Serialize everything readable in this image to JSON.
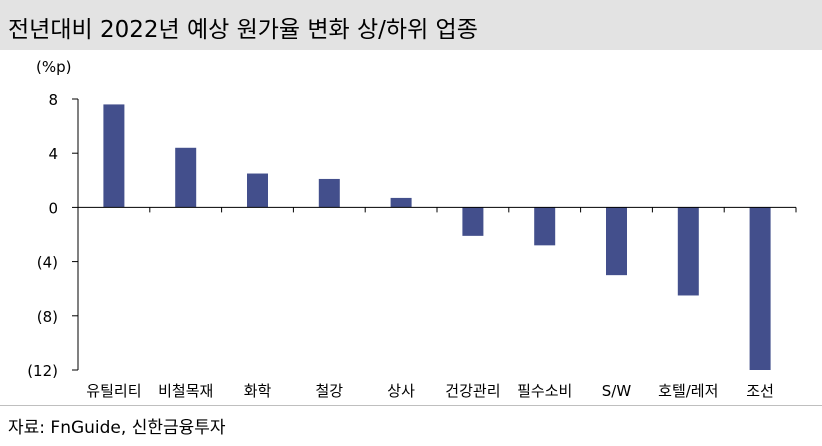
{
  "title": "전년대비 2022년 예상 원가율 변화 상/하위 업종",
  "source": "자료: FnGuide, 신한금융투자",
  "chart_data": {
    "type": "bar",
    "unit": "(%p)",
    "categories": [
      "유틸리티",
      "비철목재",
      "화학",
      "철강",
      "상사",
      "건강관리",
      "필수소비",
      "S/W",
      "호텔/레저",
      "조선"
    ],
    "values": [
      7.6,
      4.4,
      2.5,
      2.1,
      0.7,
      -2.1,
      -2.8,
      -5.0,
      -6.5,
      -12.0
    ],
    "yticks": [
      8,
      4,
      0,
      -4,
      -8,
      -12
    ],
    "ytick_labels": [
      "8",
      "4",
      "0",
      "(4)",
      "(8)",
      "(12)"
    ],
    "ylim": [
      -12,
      8
    ],
    "bar_color": "#434f8c"
  }
}
